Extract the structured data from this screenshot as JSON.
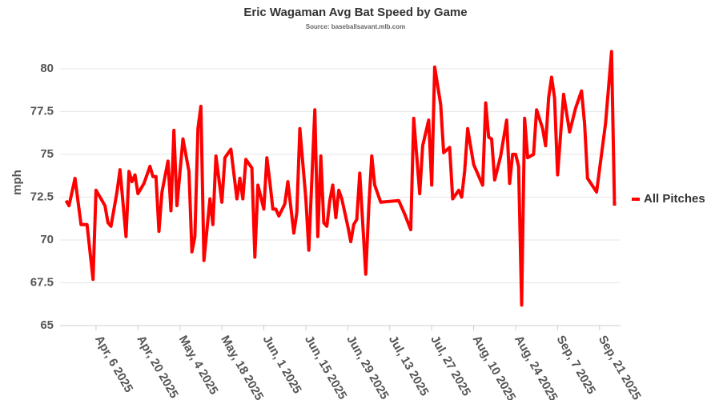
{
  "chart_data": {
    "type": "line",
    "title": "Eric Wagaman Avg Bat Speed by Game",
    "subtitle": "Source: baseballsavant.mlb.com",
    "y_label": "mph",
    "x": [
      "2025-03-27",
      "2025-03-28",
      "2025-03-30",
      "2025-04-01",
      "2025-04-03",
      "2025-04-05",
      "2025-04-06",
      "2025-04-09",
      "2025-04-10",
      "2025-04-11",
      "2025-04-13",
      "2025-04-14",
      "2025-04-16",
      "2025-04-17",
      "2025-04-18",
      "2025-04-19",
      "2025-04-20",
      "2025-04-22",
      "2025-04-24",
      "2025-04-25",
      "2025-04-26",
      "2025-04-27",
      "2025-04-28",
      "2025-04-30",
      "2025-05-01",
      "2025-05-02",
      "2025-05-03",
      "2025-05-05",
      "2025-05-07",
      "2025-05-08",
      "2025-05-09",
      "2025-05-10",
      "2025-05-11",
      "2025-05-12",
      "2025-05-14",
      "2025-05-15",
      "2025-05-16",
      "2025-05-18",
      "2025-05-19",
      "2025-05-21",
      "2025-05-23",
      "2025-05-24",
      "2025-05-25",
      "2025-05-26",
      "2025-05-28",
      "2025-05-29",
      "2025-05-30",
      "2025-06-01",
      "2025-06-02",
      "2025-06-03",
      "2025-06-04",
      "2025-06-05",
      "2025-06-06",
      "2025-06-08",
      "2025-06-09",
      "2025-06-11",
      "2025-06-12",
      "2025-06-13",
      "2025-06-15",
      "2025-06-16",
      "2025-06-18",
      "2025-06-19",
      "2025-06-20",
      "2025-06-21",
      "2025-06-22",
      "2025-06-23",
      "2025-06-24",
      "2025-06-25",
      "2025-06-26",
      "2025-06-27",
      "2025-06-29",
      "2025-06-30",
      "2025-07-01",
      "2025-07-02",
      "2025-07-03",
      "2025-07-05",
      "2025-07-06",
      "2025-07-07",
      "2025-07-08",
      "2025-07-10",
      "2025-07-16",
      "2025-07-18",
      "2025-07-20",
      "2025-07-21",
      "2025-07-23",
      "2025-07-24",
      "2025-07-26",
      "2025-07-27",
      "2025-07-28",
      "2025-07-30",
      "2025-07-31",
      "2025-08-02",
      "2025-08-03",
      "2025-08-05",
      "2025-08-06",
      "2025-08-07",
      "2025-08-08",
      "2025-08-10",
      "2025-08-13",
      "2025-08-14",
      "2025-08-15",
      "2025-08-16",
      "2025-08-17",
      "2025-08-19",
      "2025-08-21",
      "2025-08-22",
      "2025-08-23",
      "2025-08-24",
      "2025-08-25",
      "2025-08-26",
      "2025-08-27",
      "2025-08-28",
      "2025-08-30",
      "2025-08-31",
      "2025-09-02",
      "2025-09-03",
      "2025-09-04",
      "2025-09-05",
      "2025-09-06",
      "2025-09-07",
      "2025-09-09",
      "2025-09-11",
      "2025-09-13",
      "2025-09-15",
      "2025-09-16",
      "2025-09-17",
      "2025-09-20",
      "2025-09-23",
      "2025-09-25",
      "2025-09-26"
    ],
    "series": [
      {
        "name": "All Pitches",
        "color": "#ff0000",
        "values": [
          72.3,
          72.0,
          73.6,
          70.9,
          70.9,
          67.7,
          72.9,
          72.0,
          71.0,
          70.8,
          72.8,
          74.1,
          70.2,
          74.0,
          73.4,
          73.8,
          72.7,
          73.3,
          74.3,
          73.7,
          73.7,
          70.5,
          72.8,
          74.6,
          71.7,
          76.4,
          72.0,
          75.9,
          74.0,
          69.3,
          70.2,
          76.5,
          77.8,
          68.8,
          72.4,
          70.9,
          74.9,
          72.2,
          74.8,
          75.3,
          72.4,
          73.6,
          72.4,
          74.7,
          74.2,
          69.0,
          73.2,
          71.8,
          74.8,
          73.4,
          71.8,
          71.8,
          71.4,
          72.1,
          73.4,
          70.4,
          71.6,
          76.5,
          72.4,
          69.4,
          77.6,
          70.2,
          74.9,
          71.0,
          70.8,
          72.3,
          73.2,
          71.3,
          72.9,
          72.4,
          70.8,
          69.9,
          70.9,
          71.2,
          73.9,
          68.0,
          71.9,
          74.9,
          73.2,
          72.2,
          72.3,
          71.5,
          70.6,
          77.1,
          72.7,
          75.5,
          77.0,
          73.2,
          80.1,
          77.9,
          75.1,
          75.4,
          72.4,
          72.9,
          72.5,
          74.0,
          76.5,
          74.4,
          73.2,
          78.0,
          76.0,
          75.9,
          73.5,
          74.9,
          77.0,
          73.3,
          75.0,
          75.0,
          74.3,
          66.2,
          77.1,
          74.8,
          75.0,
          77.6,
          76.5,
          75.5,
          78.3,
          79.5,
          78.3,
          73.8,
          78.5,
          76.3,
          77.7,
          78.7,
          76.8,
          73.6,
          72.8,
          76.8,
          81.0,
          72.0
        ]
      }
    ],
    "xlim": [
      "2025-03-25",
      "2025-09-28"
    ],
    "xticks": [
      {
        "value": "2025-04-06",
        "label": "Apr, 6 2025"
      },
      {
        "value": "2025-04-20",
        "label": "Apr, 20 2025"
      },
      {
        "value": "2025-05-04",
        "label": "May, 4 2025"
      },
      {
        "value": "2025-05-18",
        "label": "May, 18 2025"
      },
      {
        "value": "2025-06-01",
        "label": "Jun, 1 2025"
      },
      {
        "value": "2025-06-15",
        "label": "Jun, 15 2025"
      },
      {
        "value": "2025-06-29",
        "label": "Jun, 29 2025"
      },
      {
        "value": "2025-07-13",
        "label": "Jul, 13 2025"
      },
      {
        "value": "2025-07-27",
        "label": "Jul, 27 2025"
      },
      {
        "value": "2025-08-10",
        "label": "Aug, 10 2025"
      },
      {
        "value": "2025-08-24",
        "label": "Aug, 24 2025"
      },
      {
        "value": "2025-09-07",
        "label": "Sep, 7 2025"
      },
      {
        "value": "2025-09-21",
        "label": "Sep, 21 2025"
      }
    ],
    "ylim": [
      65,
      82
    ],
    "yticks": [
      65,
      67.5,
      70,
      72.5,
      75,
      77.5,
      80
    ],
    "grid": true,
    "legend": "right"
  }
}
